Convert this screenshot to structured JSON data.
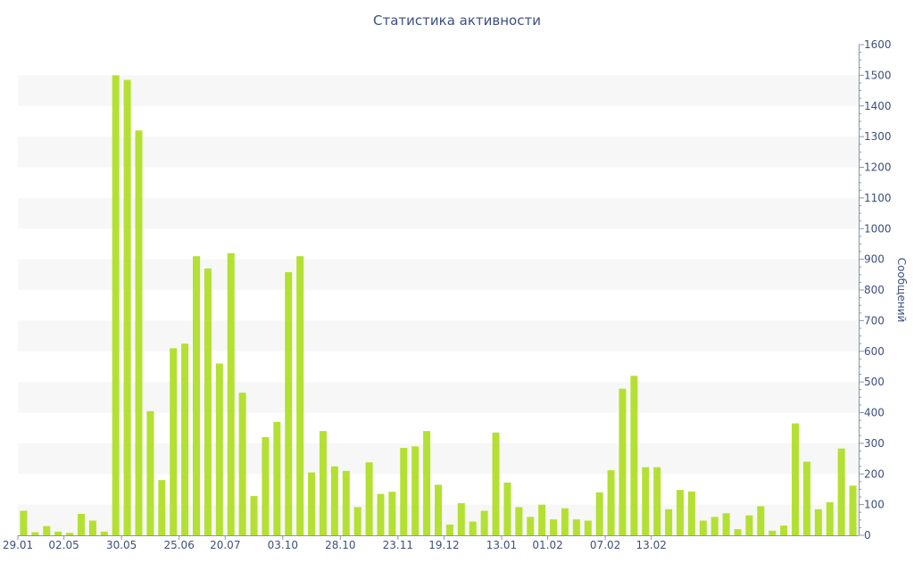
{
  "chart_data": {
    "type": "bar",
    "title": "Статистика активности",
    "xlabel": "",
    "ylabel": "Сообщений",
    "ylim": [
      0,
      1600
    ],
    "y_ticks": [
      0,
      100,
      200,
      300,
      400,
      500,
      600,
      700,
      800,
      900,
      1000,
      1100,
      1200,
      1300,
      1400,
      1500,
      1600
    ],
    "y_axis_side": "right",
    "grid": "alternating horizontal bands",
    "bar_color": "#b4e033",
    "band_color": "#f7f7f7",
    "text_color": "#3e4f7f",
    "x_tick_labels": [
      {
        "label": "29.01",
        "index": 0
      },
      {
        "label": "02.05",
        "index": 4
      },
      {
        "label": "30.05",
        "index": 9
      },
      {
        "label": "25.06",
        "index": 14
      },
      {
        "label": "20.07",
        "index": 18
      },
      {
        "label": "03.10",
        "index": 23
      },
      {
        "label": "28.10",
        "index": 28
      },
      {
        "label": "23.11",
        "index": 33
      },
      {
        "label": "19.12",
        "index": 37
      },
      {
        "label": "13.01",
        "index": 42
      },
      {
        "label": "01.02",
        "index": 46
      },
      {
        "label": "07.02",
        "index": 51
      },
      {
        "label": "13.02",
        "index": 55
      }
    ],
    "values": [
      80,
      10,
      30,
      12,
      8,
      70,
      48,
      12,
      1500,
      1485,
      1320,
      405,
      180,
      610,
      625,
      910,
      870,
      560,
      920,
      465,
      128,
      320,
      370,
      858,
      910,
      205,
      340,
      225,
      210,
      92,
      238,
      135,
      142,
      285,
      290,
      340,
      165,
      35,
      105,
      45,
      80,
      335,
      172,
      92,
      60,
      100,
      52,
      88,
      52,
      48,
      140,
      212,
      478,
      520,
      222,
      222,
      85,
      148,
      143,
      48,
      60,
      72,
      20,
      65,
      95,
      15,
      32,
      365,
      240,
      85,
      108,
      283,
      162
    ]
  }
}
